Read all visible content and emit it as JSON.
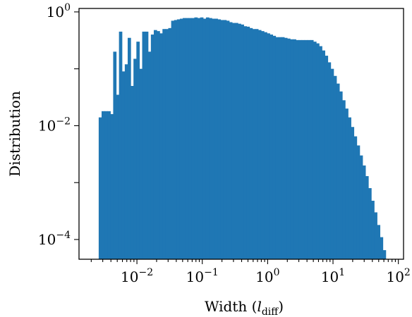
{
  "chart_data": {
    "type": "bar",
    "variant": "histogram",
    "xscale": "log",
    "yscale": "log",
    "xlabel": {
      "main": "Width (",
      "italic": "l",
      "sub": "diff",
      "close": ")"
    },
    "ylabel": "Distribution",
    "xlim": [
      0.0013,
      120
    ],
    "ylim": [
      4.5e-05,
      1.15
    ],
    "x_ticks": [
      {
        "base": "10",
        "exp": "−2",
        "value": 0.01
      },
      {
        "base": "10",
        "exp": "−1",
        "value": 0.1
      },
      {
        "base": "10",
        "exp": "0",
        "value": 1
      },
      {
        "base": "10",
        "exp": "1",
        "value": 10
      },
      {
        "base": "10",
        "exp": "2",
        "value": 100
      }
    ],
    "y_ticks": [
      {
        "base": "10",
        "exp": "0",
        "value": 1
      },
      {
        "base": "10",
        "exp": "−2",
        "value": 0.01
      },
      {
        "base": "10",
        "exp": "−4",
        "value": 0.0001
      }
    ],
    "bar_color": "#1f77b4",
    "bins": {
      "edges_log10_start": -2.585,
      "edges_log10_end": 1.85,
      "count": 100
    },
    "values": [
      0.014,
      0.018,
      0.018,
      0.018,
      0.016,
      0.2,
      0.035,
      0.45,
      0.09,
      0.12,
      0.35,
      0.05,
      0.15,
      0.3,
      0.1,
      0.45,
      0.45,
      0.2,
      0.4,
      0.48,
      0.46,
      0.42,
      0.5,
      0.5,
      0.52,
      0.7,
      0.72,
      0.74,
      0.76,
      0.78,
      0.78,
      0.78,
      0.78,
      0.8,
      0.78,
      0.8,
      0.76,
      0.8,
      0.78,
      0.76,
      0.76,
      0.74,
      0.72,
      0.72,
      0.7,
      0.66,
      0.64,
      0.64,
      0.62,
      0.6,
      0.56,
      0.55,
      0.52,
      0.5,
      0.5,
      0.48,
      0.46,
      0.44,
      0.42,
      0.4,
      0.38,
      0.36,
      0.36,
      0.36,
      0.35,
      0.34,
      0.33,
      0.33,
      0.32,
      0.32,
      0.32,
      0.32,
      0.32,
      0.32,
      0.3,
      0.28,
      0.25,
      0.21,
      0.17,
      0.13,
      0.1,
      0.075,
      0.055,
      0.04,
      0.028,
      0.02,
      0.014,
      0.0095,
      0.0065,
      0.0045,
      0.003,
      0.002,
      0.0013,
      0.0008,
      0.00048,
      0.0003,
      0.00018,
      0.00011,
      6.5e-05,
      4.5e-05
    ]
  }
}
